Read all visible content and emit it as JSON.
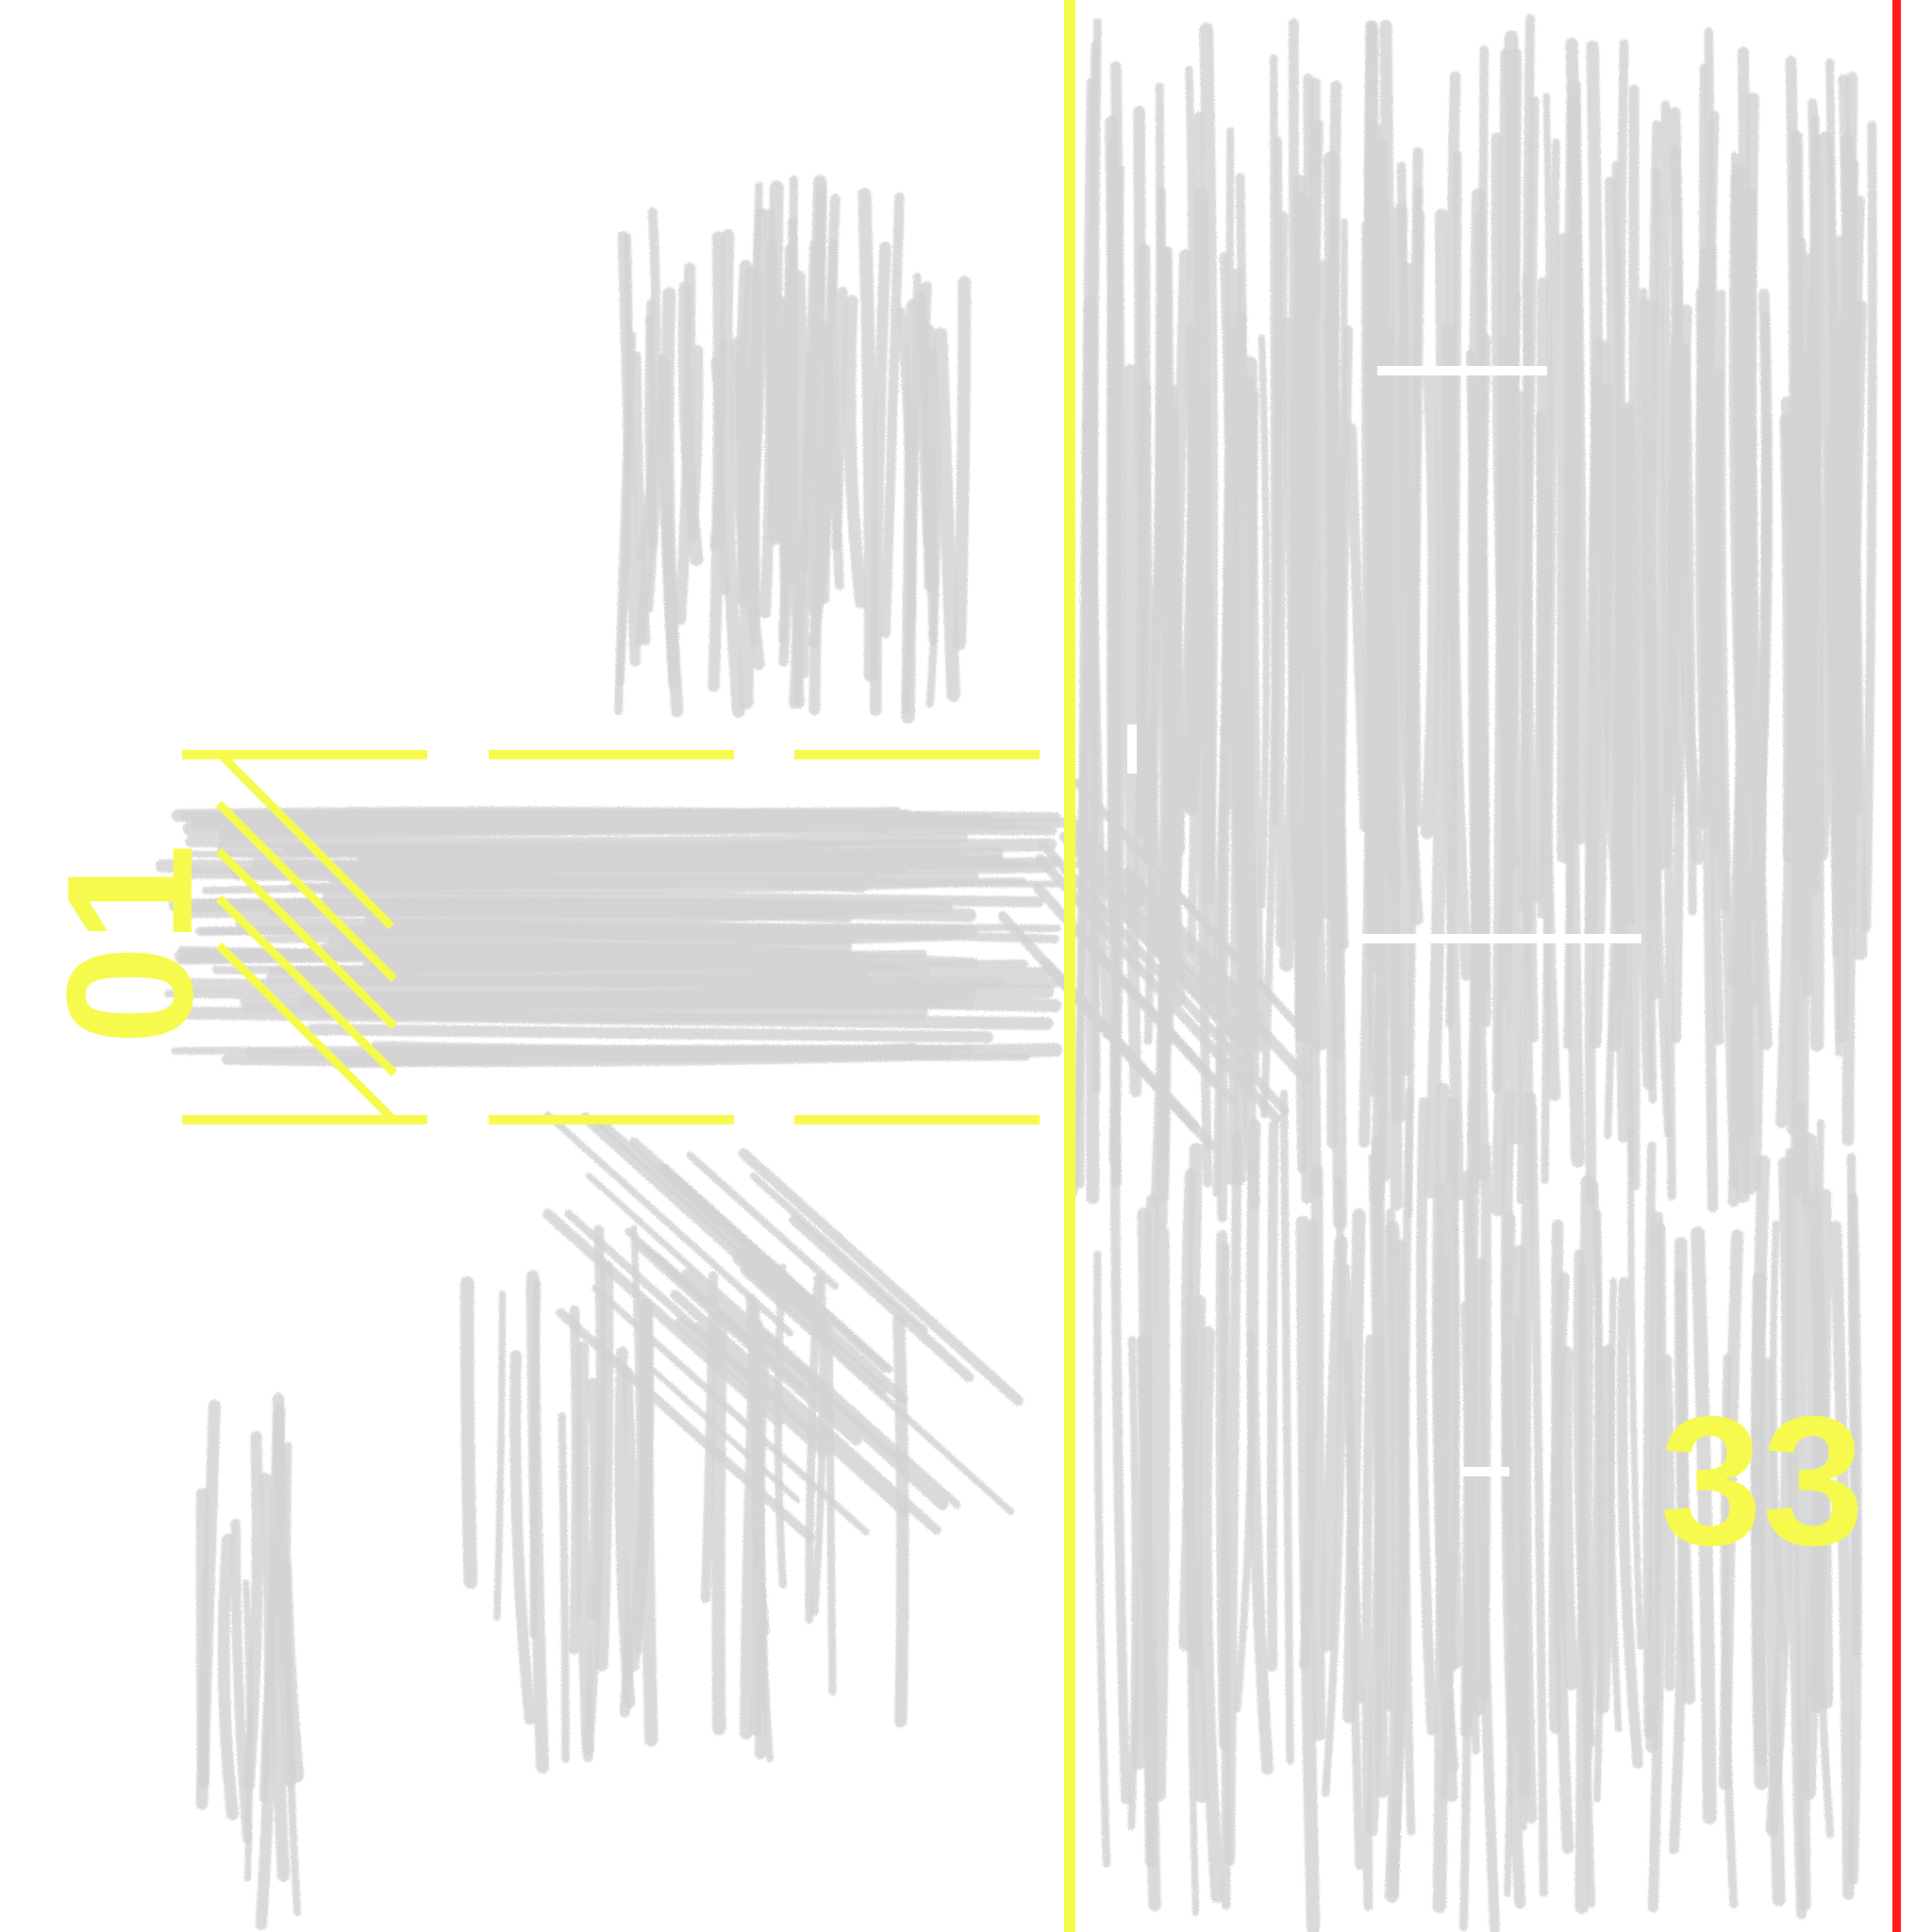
{
  "colors": {
    "background": "#ffffff",
    "scribble": "#d4d4d4",
    "accent_yellow": "#f6fa4d",
    "accent_red": "#ff1a1a",
    "gap_white": "#ffffff"
  },
  "labels": {
    "left_number": "01",
    "right_number": "33"
  },
  "icons": {
    "hatch_marks": "diagonal-hatch-icon",
    "bracket_lines": "dashed-bracket-lines"
  }
}
